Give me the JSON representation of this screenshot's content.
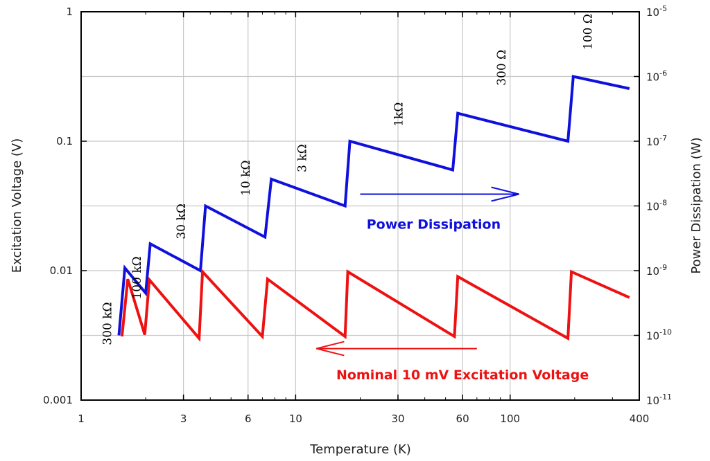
{
  "chart_data": {
    "type": "line",
    "x_scale": "log",
    "y_scale": "log",
    "xlim": [
      1,
      400
    ],
    "ylim": [
      0.001,
      1
    ],
    "y2lim": [
      1e-11,
      1e-05
    ],
    "grid": true,
    "xlabel": "Temperature (K)",
    "ylabel": "Excitation Voltage (V)",
    "y2label": "Power Dissipation (W)",
    "x_ticks": [
      1,
      3,
      6,
      10,
      30,
      60,
      100,
      400
    ],
    "x_tick_labels": [
      "1",
      "3",
      "6",
      "10",
      "30",
      "60",
      "100",
      "400"
    ],
    "y_ticks": [
      0.001,
      0.01,
      0.1,
      1
    ],
    "y_tick_labels": [
      "0.001",
      "0.01",
      "0.1",
      "1"
    ],
    "y2_ticks": [
      {
        "mant": "10",
        "exp": "-11"
      },
      {
        "mant": "10",
        "exp": "-10"
      },
      {
        "mant": "10",
        "exp": "-9"
      },
      {
        "mant": "10",
        "exp": "-8"
      },
      {
        "mant": "10",
        "exp": "-7"
      },
      {
        "mant": "10",
        "exp": "-6"
      },
      {
        "mant": "10",
        "exp": "-5"
      }
    ],
    "series": [
      {
        "axis": "right",
        "color": "#1010dd",
        "x": [
          1.5,
          1.6,
          2.0,
          2.1,
          3.6,
          3.8,
          7.2,
          7.7,
          17.0,
          17.9,
          54,
          57,
          186,
          197,
          360
        ],
        "y": [
          1e-10,
          1.1e-09,
          4.5e-10,
          2.6e-09,
          1e-09,
          1e-08,
          3.3e-09,
          2.6e-08,
          1e-08,
          1e-07,
          3.6e-08,
          2.7e-07,
          1e-07,
          1e-06,
          6.5e-07
        ]
      },
      {
        "axis": "left",
        "color": "#ee1111",
        "x": [
          1.55,
          1.65,
          1.98,
          2.08,
          3.55,
          3.68,
          7.0,
          7.4,
          17.0,
          17.5,
          55,
          57,
          186,
          193,
          360
        ],
        "y": [
          0.0031,
          0.0086,
          0.0032,
          0.0085,
          0.003,
          0.0098,
          0.0031,
          0.0086,
          0.0031,
          0.0098,
          0.0031,
          0.009,
          0.003,
          0.0098,
          0.0062
        ]
      }
    ],
    "resistance_labels": [
      {
        "text": "300 kΩ",
        "x": 1.38,
        "y": 0.0039
      },
      {
        "text": "100 kΩ",
        "x": 1.9,
        "y": 0.0088
      },
      {
        "text": "30 kΩ",
        "x": 3.05,
        "y": 0.024
      },
      {
        "text": "10 kΩ",
        "x": 6.1,
        "y": 0.052
      },
      {
        "text": "3 kΩ",
        "x": 11.2,
        "y": 0.074
      },
      {
        "text": "1kΩ",
        "x": 31.5,
        "y": 0.161
      },
      {
        "text": "300 Ω",
        "x": 95,
        "y": 0.37
      },
      {
        "text": "100 Ω",
        "x": 240,
        "y": 0.7
      }
    ],
    "annotations": [
      {
        "text": "Power Dissipation",
        "color": "#1010dd",
        "arrow": "right",
        "x_from": 20,
        "x_to": 110,
        "y": 0.039,
        "label_x": 44,
        "label_y": 0.021
      },
      {
        "text": "Nominal 10 mV Excitation Voltage",
        "color": "#ee1111",
        "arrow": "left",
        "x_from": 70,
        "x_to": 12.5,
        "y": 0.0025,
        "label_x": 60,
        "label_y": 0.00145
      }
    ]
  }
}
